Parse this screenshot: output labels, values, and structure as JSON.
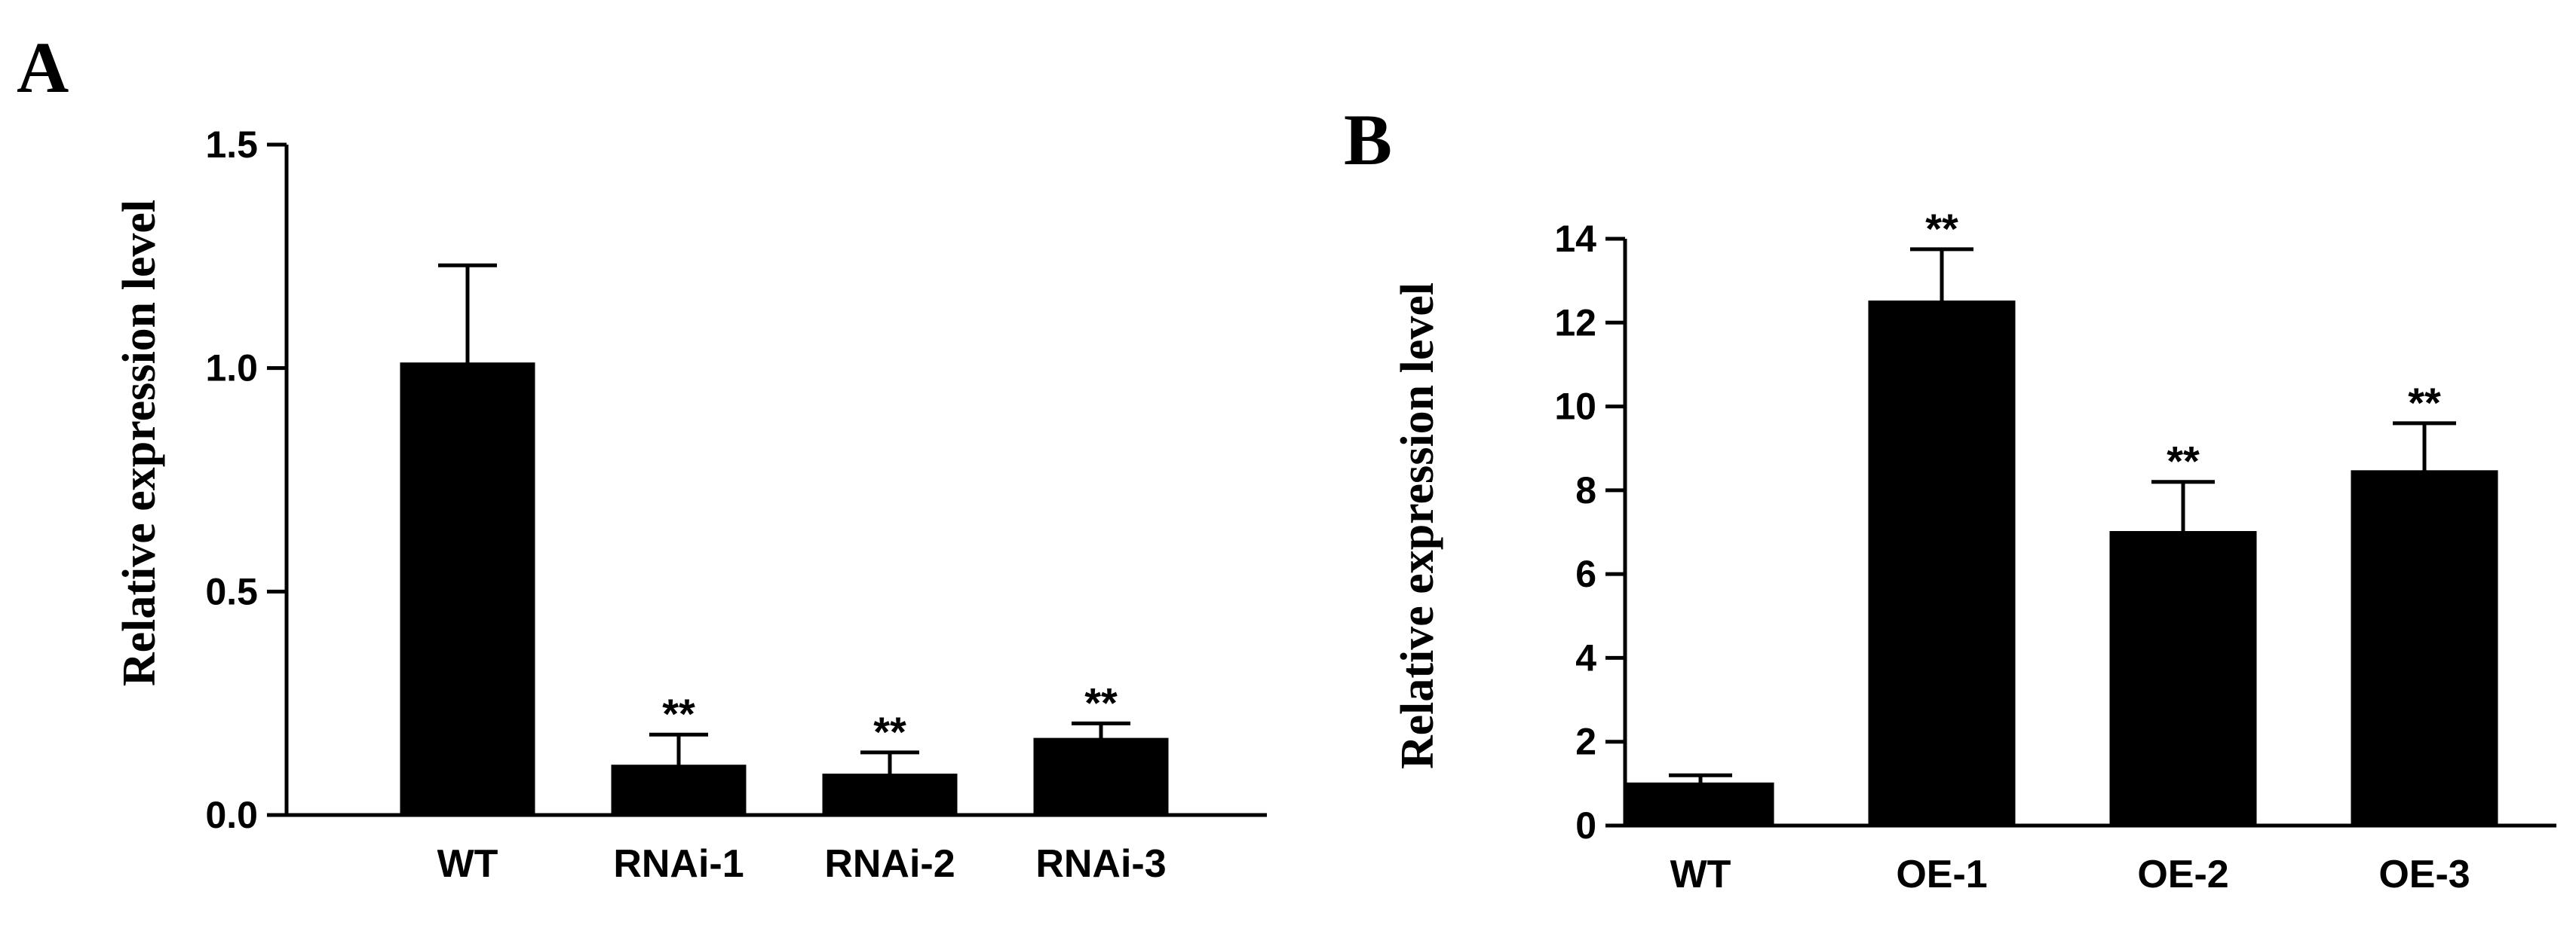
{
  "chart_data": [
    {
      "panel": "A",
      "type": "bar",
      "categories": [
        "WT",
        "RNAi-1",
        "RNAi-2",
        "RNAi-3"
      ],
      "values": [
        1.01,
        0.11,
        0.09,
        0.17
      ],
      "errors": [
        0.22,
        0.07,
        0.05,
        0.035
      ],
      "significance": [
        "",
        "**",
        "**",
        "**"
      ],
      "ylabel": "Relative expression level",
      "xlabel": "",
      "ylim": [
        0,
        1.5
      ],
      "yticks": [
        0.0,
        0.5,
        1.0,
        1.5
      ],
      "ytick_labels": [
        "0.0",
        "0.5",
        "1.0",
        "1.5"
      ],
      "color": "#000000",
      "grid": false
    },
    {
      "panel": "B",
      "type": "bar",
      "categories": [
        "WT",
        "OE-1",
        "OE-2",
        "OE-3"
      ],
      "values": [
        1.0,
        12.5,
        7.0,
        8.45
      ],
      "errors": [
        0.2,
        1.25,
        1.2,
        1.15
      ],
      "significance": [
        "",
        "**",
        "**",
        "**"
      ],
      "ylabel": "Relative expression level",
      "xlabel": "",
      "ylim": [
        0,
        14
      ],
      "yticks": [
        0,
        2,
        4,
        6,
        8,
        10,
        12,
        14
      ],
      "ytick_labels": [
        "0",
        "2",
        "4",
        "6",
        "8",
        "10",
        "12",
        "14"
      ],
      "color": "#000000",
      "grid": false
    }
  ]
}
